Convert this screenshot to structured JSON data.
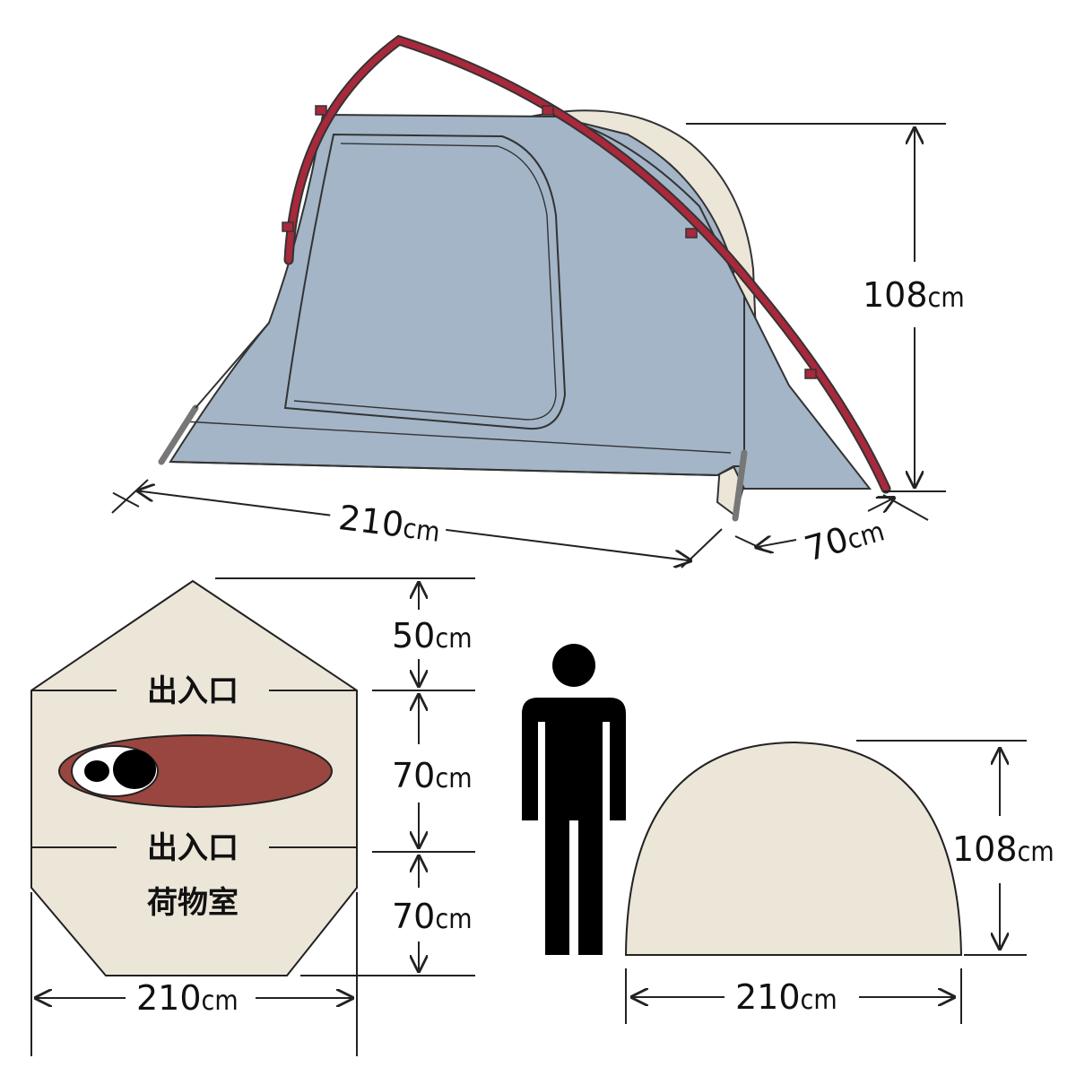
{
  "colors": {
    "inner_tent": "#a3b5c7",
    "pole": "#a8283c",
    "fly": "#ece6d9",
    "floor": "#ece6d9",
    "sleeping_bag": "#98463f",
    "person": "#000000"
  },
  "icons": [
    "tent-perspective-illustration",
    "person-silhouette-icon",
    "sleeping-bag-icon"
  ],
  "perspective": {
    "height": {
      "value": "108",
      "unit": "cm"
    },
    "length": {
      "value": "210",
      "unit": "cm"
    },
    "width": {
      "value": "70",
      "unit": "cm"
    }
  },
  "floor_plan": {
    "entrance_top_label": "出入口",
    "entrance_bottom_label": "出入口",
    "storage_label": "荷物室",
    "vestibule_front": {
      "value": "50",
      "unit": "cm"
    },
    "inner_depth": {
      "value": "70",
      "unit": "cm"
    },
    "vestibule_rear": {
      "value": "70",
      "unit": "cm"
    },
    "width": {
      "value": "210",
      "unit": "cm"
    }
  },
  "side_view": {
    "height": {
      "value": "108",
      "unit": "cm"
    },
    "width": {
      "value": "210",
      "unit": "cm"
    }
  }
}
